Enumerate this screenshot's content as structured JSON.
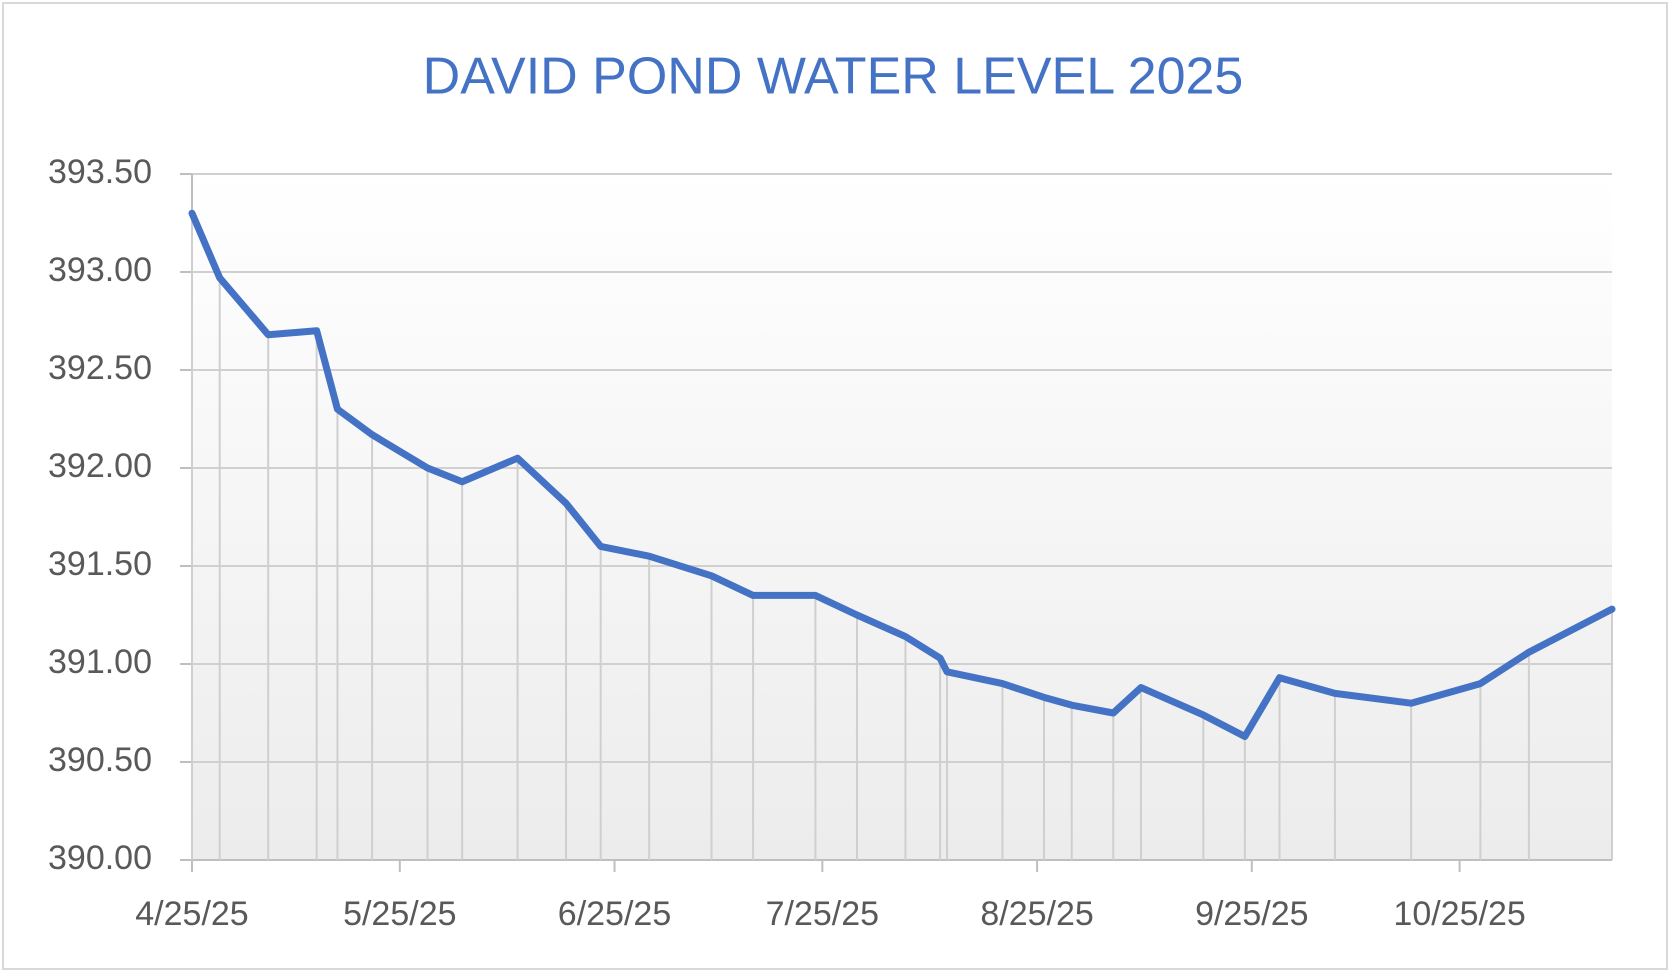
{
  "chart_data": {
    "type": "line",
    "title": "DAVID POND WATER LEVEL 2025",
    "x": [
      "2025-04-25",
      "2025-04-29",
      "2025-05-06",
      "2025-05-13",
      "2025-05-16",
      "2025-05-21",
      "2025-05-29",
      "2025-06-03",
      "2025-06-11",
      "2025-06-18",
      "2025-06-23",
      "2025-06-30",
      "2025-07-09",
      "2025-07-15",
      "2025-07-24",
      "2025-07-30",
      "2025-08-06",
      "2025-08-11",
      "2025-08-12",
      "2025-08-20",
      "2025-08-26",
      "2025-08-30",
      "2025-09-05",
      "2025-09-09",
      "2025-09-18",
      "2025-09-24",
      "2025-09-29",
      "2025-10-07",
      "2025-10-18",
      "2025-10-28",
      "2025-11-04",
      "2025-11-16"
    ],
    "values": [
      393.3,
      392.97,
      392.68,
      392.7,
      392.3,
      392.17,
      392.0,
      391.93,
      392.05,
      391.82,
      391.6,
      391.55,
      391.45,
      391.35,
      391.35,
      391.25,
      391.14,
      391.03,
      390.96,
      390.9,
      390.83,
      390.79,
      390.75,
      390.88,
      390.74,
      390.63,
      390.93,
      390.85,
      390.8,
      390.9,
      391.06,
      391.28
    ],
    "color": "#4472c4",
    "xlim": [
      "2025-04-25",
      "2025-11-16"
    ],
    "xticks": [
      {
        "value": "2025-04-25",
        "label": "4/25/25"
      },
      {
        "value": "2025-05-25",
        "label": "5/25/25"
      },
      {
        "value": "2025-06-25",
        "label": "6/25/25"
      },
      {
        "value": "2025-07-25",
        "label": "7/25/25"
      },
      {
        "value": "2025-08-25",
        "label": "8/25/25"
      },
      {
        "value": "2025-09-25",
        "label": "9/25/25"
      },
      {
        "value": "2025-10-25",
        "label": "10/25/25"
      }
    ],
    "ylim": [
      390,
      393.5
    ],
    "yticks": [
      {
        "value": 390,
        "label": "390.00"
      },
      {
        "value": 390.5,
        "label": "390.50"
      },
      {
        "value": 391,
        "label": "391.00"
      },
      {
        "value": 391.5,
        "label": "391.50"
      },
      {
        "value": 392,
        "label": "392.00"
      },
      {
        "value": 392.5,
        "label": "392.50"
      },
      {
        "value": 393,
        "label": "393.00"
      },
      {
        "value": 393.5,
        "label": "393.50"
      }
    ],
    "grid": true,
    "drop_lines": true
  }
}
